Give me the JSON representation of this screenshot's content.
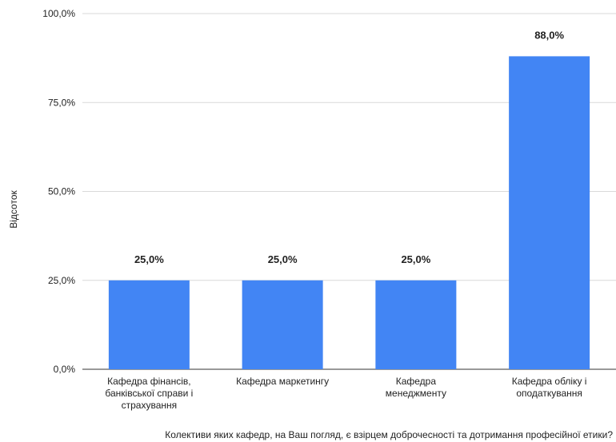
{
  "chart_data": {
    "type": "bar",
    "categories": [
      [
        "Кафедра фінансів,",
        "банківської справи і",
        "страхування"
      ],
      [
        "Кафедра маркетингу"
      ],
      [
        "Кафедра",
        "менеджменту"
      ],
      [
        "Кафедра обліку і",
        "оподаткування"
      ]
    ],
    "values": [
      25.0,
      25.0,
      25.0,
      88.0
    ],
    "data_labels": [
      "25,0%",
      "25,0%",
      "25,0%",
      "88,0%"
    ],
    "yticks": [
      0,
      25,
      50,
      75,
      100
    ],
    "ytick_labels": [
      "0,0%",
      "25,0%",
      "50,0%",
      "75,0%",
      "100,0%"
    ],
    "ylim": [
      0,
      100
    ],
    "ylabel": "Відсоток",
    "xlabel": "Колективи яких кафедр, на Ваш погляд, є взірцем доброчесності та дотримання професійної етики?",
    "title": "",
    "grid": true,
    "legend": "none",
    "bar_color": "#4285f4",
    "grid_color": "#d9d9d9",
    "axis_color": "#333333"
  }
}
